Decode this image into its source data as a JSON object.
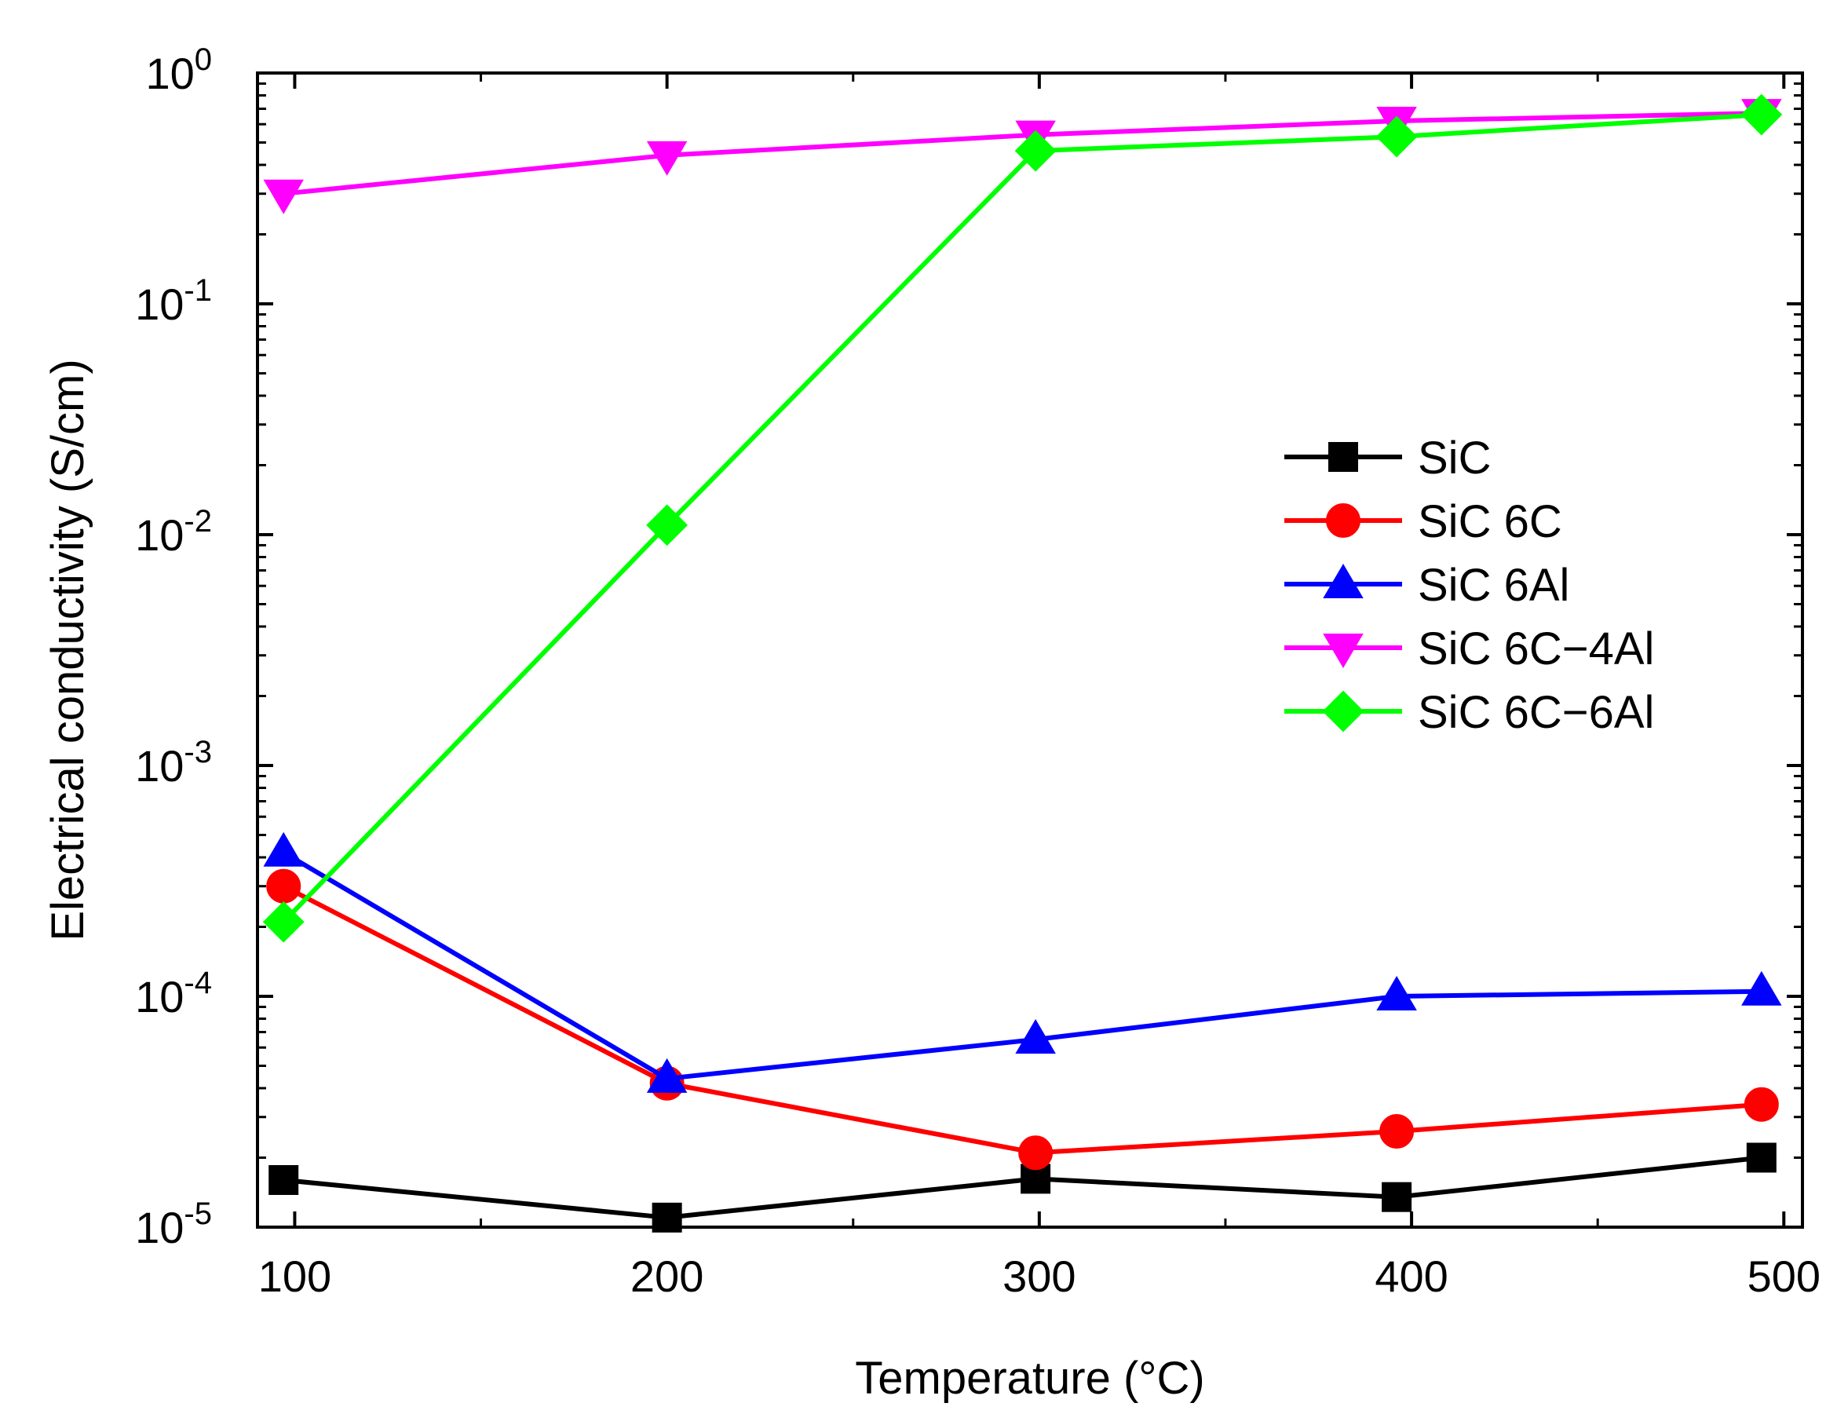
{
  "chart_data": {
    "type": "line",
    "title": "",
    "xlabel": "Temperature (°C)",
    "ylabel": "Electrical conductivity (S/cm)",
    "xlim": [
      90,
      505
    ],
    "ylim_log10": [
      -5,
      0
    ],
    "y_scale": "log",
    "x_ticks": [
      100,
      200,
      300,
      400,
      500
    ],
    "x_tick_labels": [
      "100",
      "200",
      "300",
      "400",
      "500"
    ],
    "y_ticks": [
      {
        "base": "10",
        "exp": "-5"
      },
      {
        "base": "10",
        "exp": "-4"
      },
      {
        "base": "10",
        "exp": "-3"
      },
      {
        "base": "10",
        "exp": "-2"
      },
      {
        "base": "10",
        "exp": "-1"
      },
      {
        "base": "10",
        "exp": "0"
      }
    ],
    "legend_position": "center-right",
    "series": [
      {
        "name": "SiC",
        "color": "#000000",
        "marker": "square",
        "x": [
          97,
          200,
          299,
          396,
          494
        ],
        "y": [
          1.6e-05,
          1.1e-05,
          1.62e-05,
          1.35e-05,
          2e-05
        ]
      },
      {
        "name": "SiC 6C",
        "color": "#ff0000",
        "marker": "circle",
        "x": [
          97,
          200,
          299,
          396,
          494
        ],
        "y": [
          0.0003,
          4.2e-05,
          2.1e-05,
          2.6e-05,
          3.4e-05
        ]
      },
      {
        "name": "SiC 6Al",
        "color": "#0000ff",
        "marker": "triangle-up",
        "x": [
          97,
          200,
          299,
          396,
          494
        ],
        "y": [
          0.00042,
          4.4e-05,
          6.5e-05,
          0.0001,
          0.000105
        ]
      },
      {
        "name": "SiC 6C−4Al",
        "color": "#ff00ff",
        "marker": "triangle-down",
        "x": [
          97,
          200,
          299,
          396,
          494
        ],
        "y": [
          0.3,
          0.44,
          0.54,
          0.62,
          0.67
        ]
      },
      {
        "name": "SiC 6C−6Al",
        "color": "#00ff00",
        "marker": "diamond",
        "x": [
          97,
          200,
          299,
          396,
          494
        ],
        "y": [
          0.00021,
          0.011,
          0.46,
          0.53,
          0.66
        ]
      }
    ]
  }
}
